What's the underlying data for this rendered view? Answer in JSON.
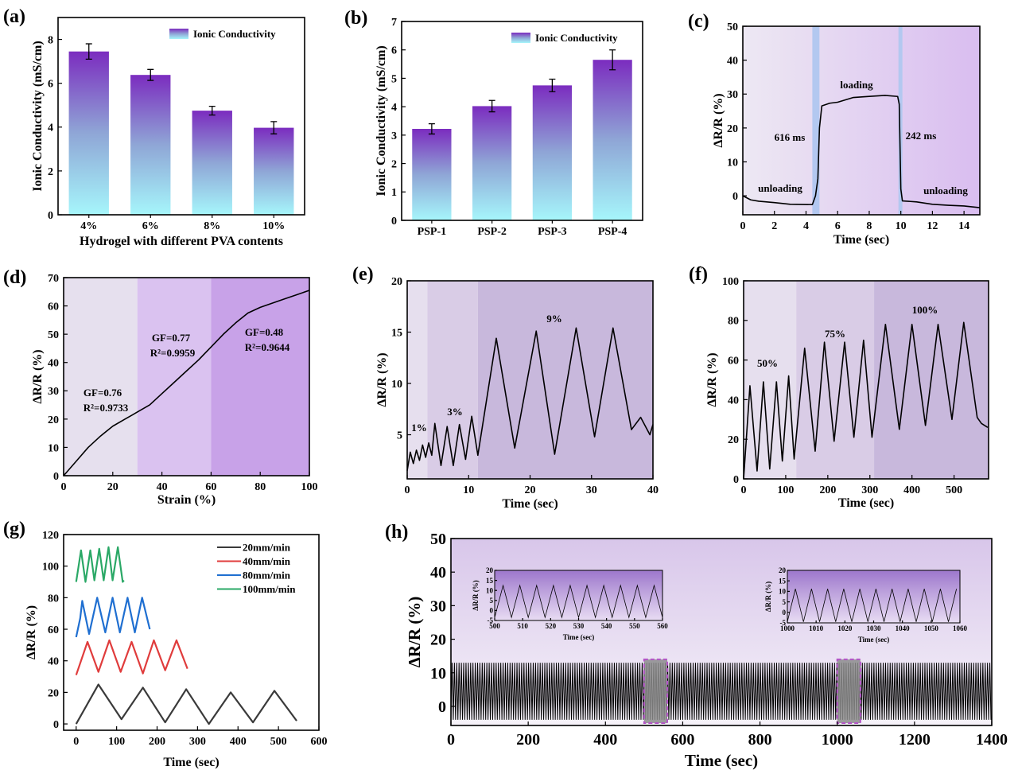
{
  "chart_data": [
    {
      "panel": "(a)",
      "type": "bar",
      "categories": [
        "4%",
        "6%",
        "8%",
        "10%"
      ],
      "values": [
        7.45,
        6.38,
        4.75,
        3.97
      ],
      "errors": [
        0.35,
        0.25,
        0.2,
        0.28
      ],
      "xlabel": "Hydrogel with different PVA contents",
      "ylabel": "Ionic Conductivity (mS/cm)",
      "ylim": [
        0,
        9
      ],
      "yticks": [
        0,
        2,
        4,
        6,
        8
      ],
      "legend": [
        "Ionic Conductivity"
      ],
      "legend_position": "top-right",
      "colors": {
        "bar_top": "#7b2cbf",
        "bar_bottom": "#a6f6fb"
      }
    },
    {
      "panel": "(b)",
      "type": "bar",
      "categories": [
        "PSP-1",
        "PSP-2",
        "PSP-3",
        "PSP-4"
      ],
      "values": [
        3.22,
        4.02,
        4.75,
        5.65
      ],
      "errors": [
        0.18,
        0.2,
        0.22,
        0.35
      ],
      "xlabel": "",
      "ylabel": "Ionic Conductivity (mS/cm)",
      "ylim": [
        0,
        7
      ],
      "yticks": [
        0,
        1,
        2,
        3,
        4,
        5,
        6,
        7
      ],
      "legend": [
        "Ionic Conductivity"
      ],
      "legend_position": "top-right",
      "colors": {
        "bar_top": "#7b2cbf",
        "bar_bottom": "#a6f6fb"
      }
    },
    {
      "panel": "(c)",
      "type": "line",
      "xlabel": "Time (sec)",
      "ylabel": "ΔR/R (%)",
      "xlim": [
        0,
        15
      ],
      "ylim": [
        -5.6,
        50
      ],
      "xticks": [
        0,
        2,
        4,
        6,
        8,
        10,
        12,
        14
      ],
      "yticks": [
        0,
        10,
        20,
        30,
        40,
        50
      ],
      "highlight_bands": [
        [
          4.4,
          4.85
        ],
        [
          9.85,
          10.1
        ]
      ],
      "annotations": [
        "loading",
        "616 ms",
        "242 ms",
        "unloading",
        "unloading"
      ],
      "series": [
        {
          "color": "#000000",
          "x": [
            0,
            0.5,
            1,
            2,
            3,
            4.4,
            4.6,
            4.75,
            4.85,
            5,
            5.5,
            6,
            7,
            8,
            9,
            9.8,
            9.9,
            10,
            10.1,
            11,
            12,
            13,
            14,
            15
          ],
          "y": [
            0,
            -1.2,
            -1.6,
            -2,
            -2.5,
            -2.6,
            0,
            5,
            20,
            26.5,
            27.3,
            27.6,
            29,
            29.3,
            29.6,
            29.3,
            27,
            2,
            -1.5,
            -1.8,
            -2.5,
            -2.8,
            -3,
            -3.5
          ]
        }
      ],
      "colors": {
        "bg_left": "#ede8f3",
        "bg_right": "#d9bdf0",
        "band": "#b3c8f0"
      }
    },
    {
      "panel": "(d)",
      "type": "line",
      "xlabel": "Strain (%)",
      "ylabel": "ΔR/R (%)",
      "xlim": [
        0,
        100
      ],
      "ylim": [
        0,
        70
      ],
      "xticks": [
        0,
        20,
        40,
        60,
        80,
        100
      ],
      "yticks": [
        0,
        10,
        20,
        30,
        40,
        50,
        60,
        70
      ],
      "regions": [
        {
          "x": [
            0,
            30
          ],
          "color": "#e6e0ee"
        },
        {
          "x": [
            30,
            60
          ],
          "color": "#dac2f0"
        },
        {
          "x": [
            60,
            100
          ],
          "color": "#c8a2e8"
        }
      ],
      "annotations": [
        "GF=0.76",
        "R²=0.9733",
        "GF=0.77",
        "R²=0.9959",
        "GF=0.48",
        "R²=0.9644"
      ],
      "series": [
        {
          "color": "#000000",
          "x": [
            0,
            5,
            10,
            15,
            20,
            25,
            28,
            30,
            35,
            40,
            45,
            50,
            55,
            60,
            65,
            70,
            75,
            80,
            85,
            90,
            95,
            100
          ],
          "y": [
            0,
            5,
            10,
            14,
            17.5,
            20,
            21.5,
            22.5,
            25,
            29,
            33,
            37,
            41,
            45.5,
            50,
            54,
            57.5,
            59.5,
            61,
            62.5,
            64,
            65.5
          ]
        }
      ]
    },
    {
      "panel": "(e)",
      "type": "line",
      "xlabel": "Time (sec)",
      "ylabel": "ΔR/R (%)",
      "xlim": [
        0,
        40
      ],
      "ylim": [
        0.7,
        20
      ],
      "xticks": [
        0,
        10,
        20,
        30,
        40
      ],
      "yticks": [
        5,
        10,
        15,
        20
      ],
      "regions": [
        {
          "x": [
            0,
            3.3
          ],
          "color": "#e6dfee"
        },
        {
          "x": [
            3.3,
            11.5
          ],
          "color": "#d9cce6"
        },
        {
          "x": [
            11.5,
            40
          ],
          "color": "#c8b8dc"
        }
      ],
      "annotations": [
        "1%",
        "3%",
        "9%"
      ],
      "series": [
        {
          "color": "#000000",
          "x": [
            0,
            0.5,
            1,
            1.5,
            2,
            2.5,
            3,
            3.5,
            4,
            4.5,
            5.5,
            6.5,
            7.5,
            8.5,
            9.5,
            10.5,
            11.5,
            14.5,
            17.5,
            21,
            24,
            27.5,
            30.5,
            33.5,
            36.5,
            38,
            39.5,
            40
          ],
          "y": [
            1.5,
            3.3,
            2.2,
            3.5,
            2.5,
            4,
            2.8,
            4.2,
            3,
            6.1,
            2,
            5.8,
            2,
            6,
            2.6,
            6.8,
            3,
            14.4,
            3.7,
            15.1,
            3.1,
            15.4,
            4.8,
            15.4,
            5.5,
            6.7,
            5,
            6
          ]
        }
      ]
    },
    {
      "panel": "(f)",
      "type": "line",
      "xlabel": "Time (sec)",
      "ylabel": "ΔR/R (%)",
      "xlim": [
        0,
        582
      ],
      "ylim": [
        0,
        100
      ],
      "xticks": [
        0,
        100,
        200,
        300,
        400,
        500
      ],
      "yticks": [
        0,
        20,
        40,
        60,
        80,
        100
      ],
      "regions": [
        {
          "x": [
            0,
            125
          ],
          "color": "#e6dfee"
        },
        {
          "x": [
            125,
            310
          ],
          "color": "#d9cce6"
        },
        {
          "x": [
            310,
            582
          ],
          "color": "#c8b8dc"
        }
      ],
      "annotations": [
        "50%",
        "75%",
        "100%"
      ],
      "series": [
        {
          "color": "#000000",
          "x": [
            0,
            15,
            32,
            47,
            62,
            78,
            92,
            107,
            120,
            145,
            170,
            192,
            215,
            240,
            262,
            285,
            305,
            337,
            370,
            400,
            432,
            462,
            495,
            523,
            555,
            565,
            580
          ],
          "y": [
            0,
            47,
            4,
            49,
            5,
            49,
            9,
            52,
            10,
            66,
            14,
            69,
            19,
            69,
            21,
            70,
            21,
            78,
            25,
            78,
            27,
            78,
            30,
            79,
            31,
            28,
            26
          ]
        }
      ]
    },
    {
      "panel": "(g)",
      "type": "line",
      "xlabel": "Time (sec)",
      "ylabel": "ΔR/R (%)",
      "xlim": [
        -31,
        600
      ],
      "ylim": [
        -4,
        120
      ],
      "xticks": [
        0,
        100,
        200,
        300,
        400,
        500,
        600
      ],
      "yticks": [
        0,
        20,
        40,
        60,
        80,
        100,
        120
      ],
      "legend_position": "top-right",
      "series": [
        {
          "name": "20mm/min",
          "color": "#3a3a3a",
          "x": [
            0,
            55,
            112,
            165,
            220,
            272,
            328,
            382,
            437,
            490,
            545
          ],
          "y": [
            0,
            25,
            3,
            23,
            1,
            22,
            0,
            20,
            1,
            21,
            2
          ]
        },
        {
          "name": "40mm/min",
          "color": "#e03c3c",
          "x": [
            0,
            28,
            55,
            82,
            110,
            137,
            165,
            192,
            220,
            248,
            275
          ],
          "y": [
            31,
            52,
            33,
            53,
            33,
            52,
            32,
            53,
            34,
            53,
            35
          ]
        },
        {
          "name": "80mm/min",
          "color": "#1f6fd1",
          "x": [
            0,
            10,
            15,
            32,
            52,
            72,
            90,
            108,
            127,
            145,
            163,
            182
          ],
          "y": [
            55,
            67,
            78,
            57,
            80,
            58,
            80,
            58,
            80,
            58,
            80,
            60
          ]
        },
        {
          "name": "100mm/min",
          "color": "#2aa866",
          "x": [
            0,
            12,
            23,
            35,
            45,
            57,
            68,
            80,
            90,
            103,
            115,
            118
          ],
          "y": [
            90,
            110,
            90,
            110,
            91,
            111,
            91,
            112,
            91,
            112,
            90,
            91
          ]
        }
      ]
    },
    {
      "panel": "(h)",
      "type": "line",
      "xlabel": "Time (sec)",
      "ylabel": "ΔR/R (%)",
      "xlim": [
        0,
        1400
      ],
      "ylim": [
        -5.7,
        50
      ],
      "xticks": [
        0,
        200,
        400,
        600,
        800,
        1000,
        1200,
        1400
      ],
      "yticks": [
        0,
        10,
        20,
        30,
        40,
        50
      ],
      "signal": {
        "min": -4,
        "max": 13,
        "period_sec": 6
      },
      "zoom_windows": [
        {
          "x": [
            500,
            560
          ],
          "y": [
            -5,
            14
          ]
        },
        {
          "x": [
            1000,
            1060
          ],
          "y": [
            -5,
            14
          ]
        }
      ],
      "colors": {
        "bg_top": "#d8c6ea",
        "bg_bottom": "#f6f3f9",
        "window_border": "#b455c8"
      },
      "insets": [
        {
          "xlabel": "Time (sec)",
          "ylabel": "ΔR/R (%)",
          "xlim": [
            500,
            560
          ],
          "ylim": [
            -5,
            20
          ],
          "xticks": [
            500,
            510,
            520,
            530,
            540,
            550,
            560
          ],
          "yticks": [
            -5,
            0,
            5,
            10,
            15,
            20
          ],
          "signal": {
            "min": -3.5,
            "max": 12.5,
            "period_sec": 6
          }
        },
        {
          "xlabel": "Time (sec)",
          "ylabel": "ΔR/R (%)",
          "xlim": [
            1000,
            1060
          ],
          "ylim": [
            -5,
            20
          ],
          "xticks": [
            1000,
            1010,
            1020,
            1030,
            1040,
            1050,
            1060
          ],
          "yticks": [
            -5,
            0,
            5,
            10,
            15,
            20
          ],
          "signal": {
            "min": -4.5,
            "max": 11.2,
            "period_sec": 5.6
          }
        }
      ]
    }
  ]
}
